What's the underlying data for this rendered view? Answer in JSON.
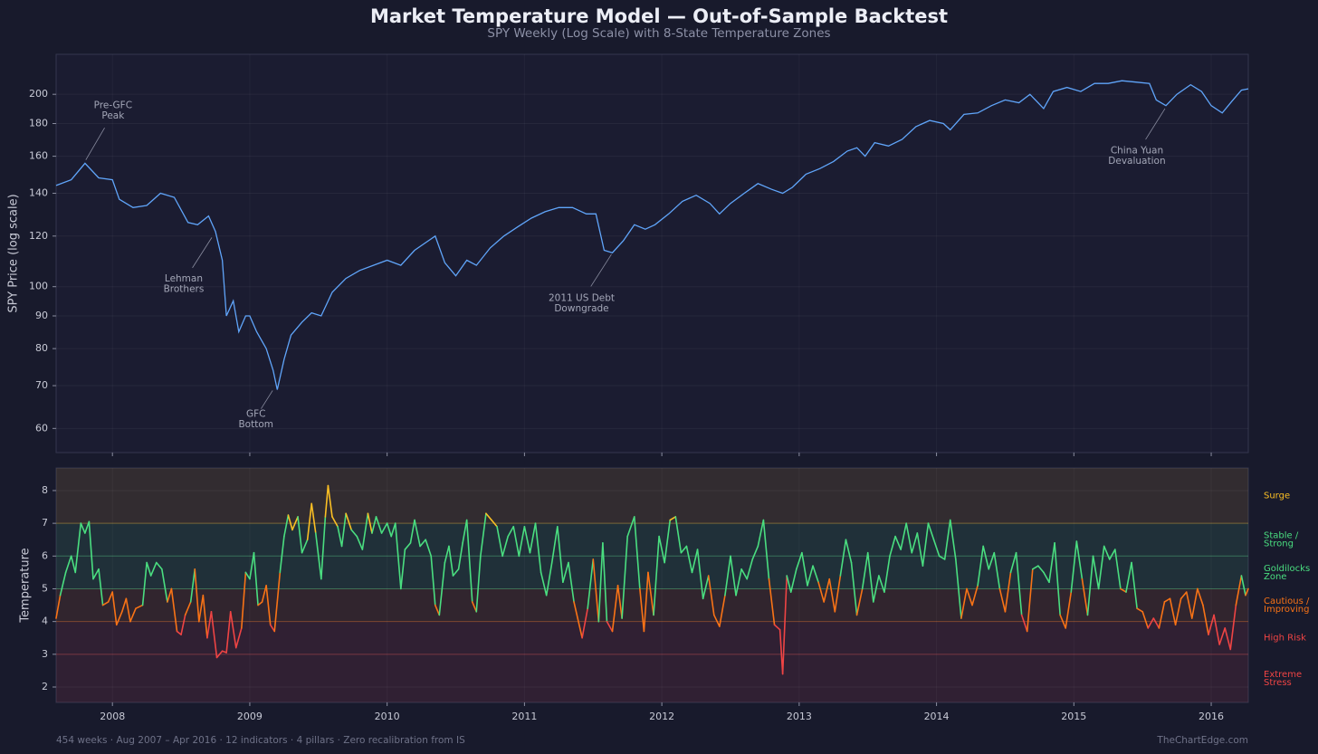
{
  "title": "Market Temperature Model — Out-of-Sample Backtest",
  "subtitle": "SPY Weekly (Log Scale) with 8-State Temperature Zones",
  "footer": {
    "left": "454 weeks · Aug 2007 – Apr 2016 · 12 indicators · 4 pillars · Zero recalibration from IS",
    "right": "TheChartEdge.com"
  },
  "chart_data": [
    {
      "type": "line",
      "y_label": "SPY Price (log scale)",
      "log_y": true,
      "grid": true,
      "color": "#60a5fa",
      "xlim": [
        2007.59,
        2016.27
      ],
      "xticks": [
        2008,
        2009,
        2010,
        2011,
        2012,
        2013,
        2014,
        2015,
        2016
      ],
      "ylim": [
        55,
        231
      ],
      "yticks": [
        60,
        70,
        80,
        90,
        100,
        120,
        140,
        160,
        180,
        200
      ],
      "x": [
        2007.59,
        2007.7,
        2007.8,
        2007.9,
        2008.0,
        2008.05,
        2008.15,
        2008.25,
        2008.35,
        2008.45,
        2008.55,
        2008.62,
        2008.7,
        2008.75,
        2008.8,
        2008.83,
        2008.88,
        2008.92,
        2008.97,
        2009.0,
        2009.05,
        2009.12,
        2009.17,
        2009.2,
        2009.25,
        2009.3,
        2009.38,
        2009.45,
        2009.52,
        2009.6,
        2009.7,
        2009.8,
        2009.9,
        2010.0,
        2010.1,
        2010.2,
        2010.3,
        2010.35,
        2010.42,
        2010.5,
        2010.58,
        2010.65,
        2010.75,
        2010.85,
        2010.95,
        2011.05,
        2011.15,
        2011.25,
        2011.35,
        2011.45,
        2011.52,
        2011.58,
        2011.64,
        2011.72,
        2011.8,
        2011.88,
        2011.95,
        2012.05,
        2012.15,
        2012.25,
        2012.35,
        2012.42,
        2012.5,
        2012.6,
        2012.7,
        2012.8,
        2012.88,
        2012.95,
        2013.05,
        2013.15,
        2013.25,
        2013.35,
        2013.42,
        2013.48,
        2013.55,
        2013.65,
        2013.75,
        2013.85,
        2013.95,
        2014.05,
        2014.1,
        2014.2,
        2014.3,
        2014.4,
        2014.5,
        2014.6,
        2014.68,
        2014.78,
        2014.85,
        2014.95,
        2015.05,
        2015.15,
        2015.25,
        2015.35,
        2015.45,
        2015.55,
        2015.6,
        2015.67,
        2015.75,
        2015.85,
        2015.93,
        2016.0,
        2016.08,
        2016.15,
        2016.22,
        2016.27
      ],
      "values": [
        144,
        147,
        156,
        148,
        147,
        137,
        133,
        134,
        140,
        138,
        126,
        125,
        129,
        122,
        110,
        90,
        95,
        85,
        90,
        90,
        85,
        80,
        74,
        69,
        77,
        84,
        88,
        91,
        90,
        98,
        103,
        106,
        108,
        110,
        108,
        114,
        118,
        120,
        109,
        104,
        110,
        108,
        115,
        120,
        124,
        128,
        131,
        133,
        133,
        130,
        130,
        114,
        113,
        118,
        125,
        123,
        125,
        130,
        136,
        139,
        135,
        130,
        135,
        140,
        145,
        142,
        140,
        143,
        150,
        153,
        157,
        163,
        165,
        160,
        168,
        166,
        170,
        178,
        182,
        180,
        176,
        186,
        187,
        192,
        196,
        194,
        200,
        190,
        202,
        205,
        202,
        208,
        208,
        210,
        209,
        208,
        196,
        192,
        200,
        207,
        202,
        192,
        187,
        195,
        203,
        204
      ],
      "annotations": [
        {
          "text": [
            "Pre-GFC",
            "Peak"
          ],
          "x": 2007.8,
          "y": 157
        },
        {
          "text": [
            "Lehman",
            "Brothers"
          ],
          "x": 2008.73,
          "y": 120
        },
        {
          "text": [
            "GFC",
            "Bottom"
          ],
          "x": 2009.17,
          "y": 69
        },
        {
          "text": [
            "2011 US Debt",
            "Downgrade"
          ],
          "x": 2011.64,
          "y": 113
        },
        {
          "text": [
            "China Yuan",
            "Devaluation"
          ],
          "x": 2015.67,
          "y": 191
        }
      ]
    },
    {
      "type": "zone_line",
      "y_label": "Temperature",
      "grid": true,
      "xlim": [
        2007.59,
        2016.27
      ],
      "xticks": [
        2008,
        2009,
        2010,
        2011,
        2012,
        2013,
        2014,
        2015,
        2016
      ],
      "ylim": [
        1.53,
        8.69
      ],
      "yticks": [
        2,
        3,
        4,
        5,
        6,
        7,
        8
      ],
      "zone_bounds": [
        3,
        4,
        5,
        6,
        7
      ],
      "zones": [
        {
          "label": [
            "Extreme",
            "Stress"
          ],
          "color": "#ef4444"
        },
        {
          "label": [
            "High Risk"
          ],
          "color": "#ef4444"
        },
        {
          "label": [
            "Cautious /",
            "Improving"
          ],
          "color": "#f97316"
        },
        {
          "label": [
            "Goldilocks",
            "Zone"
          ],
          "color": "#4ade80"
        },
        {
          "label": [
            "Stable /",
            "Strong"
          ],
          "color": "#4ade80"
        },
        {
          "label": [
            "Surge"
          ],
          "color": "#fbbf24"
        }
      ],
      "x": [
        2007.59,
        2007.62,
        2007.66,
        2007.7,
        2007.73,
        2007.77,
        2007.8,
        2007.83,
        2007.86,
        2007.9,
        2007.93,
        2007.97,
        2008.0,
        2008.03,
        2008.07,
        2008.1,
        2008.13,
        2008.17,
        2008.22,
        2008.25,
        2008.28,
        2008.32,
        2008.36,
        2008.4,
        2008.43,
        2008.47,
        2008.5,
        2008.53,
        2008.57,
        2008.6,
        2008.63,
        2008.66,
        2008.69,
        2008.72,
        2008.76,
        2008.8,
        2008.83,
        2008.86,
        2008.9,
        2008.94,
        2008.97,
        2009.0,
        2009.03,
        2009.06,
        2009.09,
        2009.12,
        2009.15,
        2009.18,
        2009.22,
        2009.25,
        2009.28,
        2009.31,
        2009.35,
        2009.38,
        2009.42,
        2009.45,
        2009.48,
        2009.52,
        2009.55,
        2009.57,
        2009.6,
        2009.64,
        2009.67,
        2009.7,
        2009.74,
        2009.78,
        2009.82,
        2009.86,
        2009.89,
        2009.92,
        2009.96,
        2010.0,
        2010.03,
        2010.06,
        2010.1,
        2010.13,
        2010.17,
        2010.2,
        2010.24,
        2010.28,
        2010.32,
        2010.35,
        2010.38,
        2010.42,
        2010.45,
        2010.48,
        2010.52,
        2010.55,
        2010.58,
        2010.62,
        2010.65,
        2010.68,
        2010.72,
        2010.76,
        2010.8,
        2010.84,
        2010.88,
        2010.92,
        2010.96,
        2011.0,
        2011.04,
        2011.08,
        2011.12,
        2011.16,
        2011.2,
        2011.24,
        2011.28,
        2011.32,
        2011.36,
        2011.42,
        2011.46,
        2011.5,
        2011.54,
        2011.57,
        2011.6,
        2011.64,
        2011.68,
        2011.71,
        2011.75,
        2011.8,
        2011.84,
        2011.87,
        2011.9,
        2011.94,
        2011.98,
        2012.02,
        2012.06,
        2012.1,
        2012.14,
        2012.18,
        2012.22,
        2012.26,
        2012.3,
        2012.34,
        2012.38,
        2012.42,
        2012.46,
        2012.5,
        2012.54,
        2012.58,
        2012.62,
        2012.66,
        2012.7,
        2012.74,
        2012.78,
        2012.82,
        2012.86,
        2012.88,
        2012.91,
        2012.94,
        2012.98,
        2013.02,
        2013.06,
        2013.1,
        2013.14,
        2013.18,
        2013.22,
        2013.26,
        2013.3,
        2013.34,
        2013.38,
        2013.42,
        2013.46,
        2013.5,
        2013.54,
        2013.58,
        2013.62,
        2013.66,
        2013.7,
        2013.74,
        2013.78,
        2013.82,
        2013.86,
        2013.9,
        2013.94,
        2013.98,
        2014.02,
        2014.06,
        2014.1,
        2014.14,
        2014.18,
        2014.22,
        2014.26,
        2014.3,
        2014.34,
        2014.38,
        2014.42,
        2014.46,
        2014.5,
        2014.54,
        2014.58,
        2014.62,
        2014.66,
        2014.7,
        2014.74,
        2014.78,
        2014.82,
        2014.86,
        2014.9,
        2014.94,
        2014.98,
        2015.02,
        2015.06,
        2015.1,
        2015.14,
        2015.18,
        2015.22,
        2015.26,
        2015.3,
        2015.34,
        2015.38,
        2015.42,
        2015.46,
        2015.5,
        2015.54,
        2015.58,
        2015.62,
        2015.66,
        2015.7,
        2015.74,
        2015.78,
        2015.82,
        2015.86,
        2015.9,
        2015.94,
        2015.98,
        2016.02,
        2016.06,
        2016.1,
        2016.14,
        2016.18,
        2016.22,
        2016.25,
        2016.27
      ],
      "values": [
        4.1,
        4.8,
        5.5,
        6.0,
        5.5,
        7.0,
        6.7,
        7.05,
        5.3,
        5.6,
        4.5,
        4.6,
        4.9,
        3.9,
        4.3,
        4.7,
        4.0,
        4.4,
        4.5,
        5.8,
        5.4,
        5.8,
        5.6,
        4.6,
        5.0,
        3.7,
        3.6,
        4.2,
        4.6,
        5.6,
        4.0,
        4.8,
        3.5,
        4.3,
        2.9,
        3.1,
        3.05,
        4.3,
        3.2,
        3.8,
        5.5,
        5.3,
        6.1,
        4.5,
        4.6,
        5.1,
        3.9,
        3.7,
        5.5,
        6.6,
        7.25,
        6.8,
        7.2,
        6.1,
        6.5,
        7.6,
        6.7,
        5.3,
        7.2,
        8.15,
        7.2,
        6.9,
        6.3,
        7.3,
        6.8,
        6.6,
        6.2,
        7.3,
        6.7,
        7.2,
        6.7,
        7.0,
        6.6,
        7.0,
        5.0,
        6.2,
        6.4,
        7.1,
        6.3,
        6.5,
        6.0,
        4.5,
        4.2,
        5.8,
        6.3,
        5.4,
        5.6,
        6.4,
        7.1,
        4.6,
        4.3,
        6.0,
        7.3,
        7.1,
        6.9,
        6.0,
        6.6,
        6.9,
        6.0,
        6.9,
        6.1,
        7.0,
        5.5,
        4.8,
        5.8,
        6.9,
        5.2,
        5.8,
        4.6,
        3.5,
        4.4,
        5.9,
        4.0,
        6.4,
        4.0,
        3.7,
        5.1,
        4.1,
        6.6,
        7.2,
        5.0,
        3.7,
        5.5,
        4.2,
        6.6,
        5.8,
        7.1,
        7.2,
        6.1,
        6.3,
        5.5,
        6.2,
        4.7,
        5.4,
        4.2,
        3.85,
        4.8,
        6.0,
        4.8,
        5.6,
        5.3,
        5.9,
        6.3,
        7.1,
        5.3,
        3.9,
        3.75,
        2.4,
        5.4,
        4.9,
        5.6,
        6.1,
        5.1,
        5.7,
        5.2,
        4.6,
        5.3,
        4.3,
        5.4,
        6.5,
        5.8,
        4.2,
        5.0,
        6.1,
        4.6,
        5.4,
        4.9,
        6.0,
        6.6,
        6.2,
        7.0,
        6.1,
        6.7,
        5.7,
        7.0,
        6.5,
        6.0,
        5.9,
        7.1,
        5.9,
        4.1,
        5.0,
        4.5,
        5.1,
        6.3,
        5.6,
        6.1,
        5.0,
        4.3,
        5.5,
        6.1,
        4.2,
        3.7,
        5.6,
        5.7,
        5.5,
        5.2,
        6.4,
        4.2,
        3.8,
        4.9,
        6.45,
        5.3,
        4.2,
        6.0,
        5.0,
        6.3,
        5.9,
        6.2,
        5.0,
        4.9,
        5.8,
        4.4,
        4.3,
        3.8,
        4.1,
        3.8,
        4.6,
        4.7,
        3.9,
        4.7,
        4.9,
        4.1,
        5.0,
        4.5,
        3.6,
        4.2,
        3.3,
        3.8,
        3.15,
        4.5,
        5.4,
        4.8,
        5.0
      ]
    }
  ]
}
